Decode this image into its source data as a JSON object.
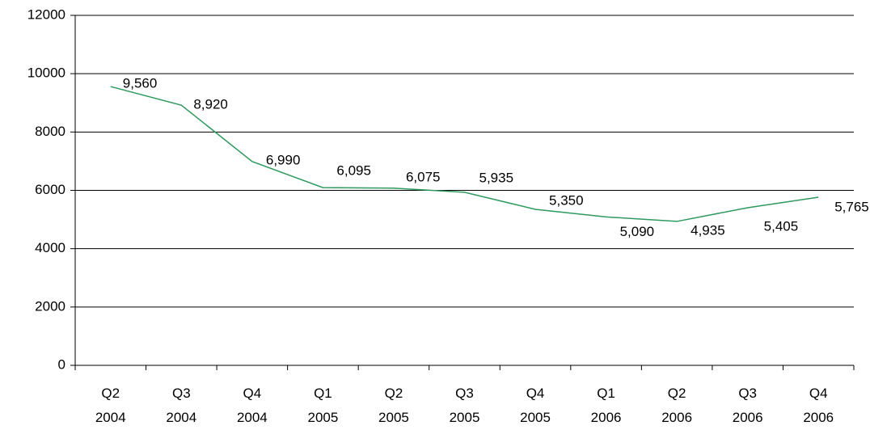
{
  "chart_data": {
    "type": "line",
    "categories": [
      [
        "Q2",
        "2004"
      ],
      [
        "Q3",
        "2004"
      ],
      [
        "Q4",
        "2004"
      ],
      [
        "Q1",
        "2005"
      ],
      [
        "Q2",
        "2005"
      ],
      [
        "Q3",
        "2005"
      ],
      [
        "Q4",
        "2005"
      ],
      [
        "Q1",
        "2006"
      ],
      [
        "Q2",
        "2006"
      ],
      [
        "Q3",
        "2006"
      ],
      [
        "Q4",
        "2006"
      ]
    ],
    "values": [
      9560,
      8920,
      6990,
      6095,
      6075,
      5935,
      5350,
      5090,
      4935,
      5405,
      5765
    ],
    "value_labels": [
      "9,560",
      "8,920",
      "6,990",
      "6,095",
      "6,075",
      "5,935",
      "5,350",
      "5,090",
      "4,935",
      "5,405",
      "5,765"
    ],
    "color": "#2e9a5e",
    "ylim": [
      0,
      12000
    ],
    "yticks": [
      0,
      2000,
      4000,
      6000,
      8000,
      10000,
      12000
    ],
    "grid": true
  }
}
